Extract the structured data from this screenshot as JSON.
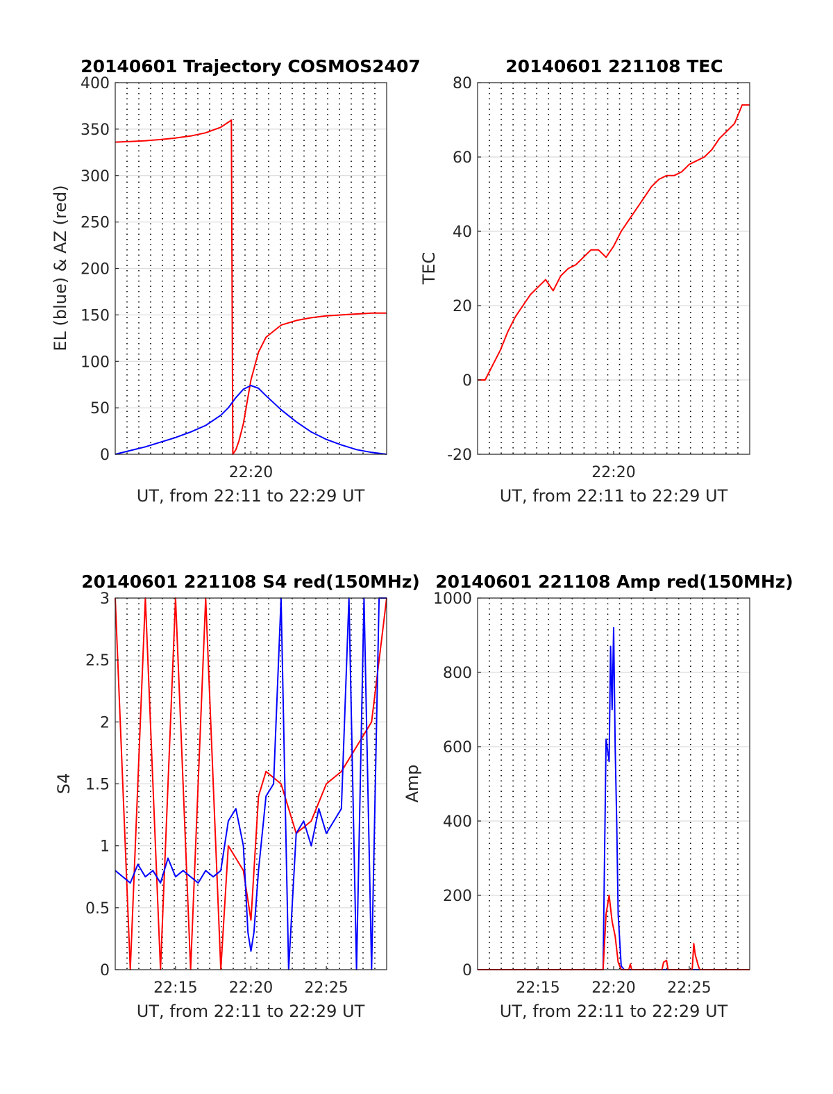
{
  "colors": {
    "red": "#ff0000",
    "blue": "#0000ff",
    "grid": "#dcdcdc",
    "vgrid": "#000000"
  },
  "chart_data": [
    {
      "id": "traj",
      "type": "line",
      "title": "20140601 Trajectory COSMOS2407",
      "xlabel": "UT, from 22:11 to 22:29 UT",
      "ylabel": "EL (blue) & AZ (red)",
      "xlim": [
        0,
        18
      ],
      "ylim": [
        0,
        400
      ],
      "yticks": [
        0,
        50,
        100,
        150,
        200,
        250,
        300,
        350,
        400
      ],
      "xticks": [
        9
      ],
      "xticklabels": [
        "22:20"
      ],
      "grid": true,
      "series": [
        {
          "color": "red",
          "x": [
            0,
            1,
            2,
            3,
            4,
            5,
            6,
            7,
            7.6,
            7.7,
            7.8,
            8.0,
            8.2,
            8.5,
            9.0,
            9.5,
            10.0,
            11.0,
            12.0,
            13.0,
            14.0,
            15.0,
            16.0,
            17.0,
            18.0
          ],
          "y": [
            336,
            336.6,
            337.5,
            338.8,
            340.4,
            342.6,
            346,
            352,
            358.5,
            359.8,
            0,
            5,
            14,
            33,
            80,
            110,
            126,
            139,
            144,
            147,
            149,
            150,
            151,
            152,
            152
          ]
        },
        {
          "color": "blue",
          "x": [
            0,
            1,
            2,
            3,
            4,
            5,
            6,
            7,
            7.5,
            8,
            8.5,
            9,
            9.5,
            10,
            11,
            12,
            13,
            14,
            15,
            16,
            17,
            18
          ],
          "y": [
            0,
            4,
            8,
            13,
            18,
            24,
            31,
            42,
            50,
            61,
            70,
            74,
            71,
            63,
            48,
            35,
            24,
            16,
            10,
            5,
            2,
            0
          ]
        }
      ]
    },
    {
      "id": "tec",
      "type": "line",
      "title": "20140601 221108 TEC",
      "xlabel": "UT, from 22:11 to 22:29 UT",
      "ylabel": "TEC",
      "xlim": [
        0,
        18
      ],
      "ylim": [
        -20,
        80
      ],
      "yticks": [
        -20,
        0,
        20,
        40,
        60,
        80
      ],
      "xticks": [
        9
      ],
      "xticklabels": [
        "22:20"
      ],
      "grid": true,
      "series": [
        {
          "color": "red",
          "x": [
            0,
            0.5,
            1,
            1.5,
            2,
            2.5,
            3,
            3.5,
            4,
            4.5,
            5,
            5.5,
            6,
            6.5,
            7,
            7.5,
            8,
            8.5,
            9,
            9.5,
            10,
            10.5,
            11,
            11.5,
            12,
            12.5,
            13,
            13.5,
            14,
            14.5,
            15,
            15.5,
            16,
            16.5,
            17,
            17.5,
            18
          ],
          "y": [
            0,
            0,
            4,
            8,
            13,
            17,
            20,
            23,
            25,
            27,
            24,
            28,
            30,
            31,
            33,
            35,
            35,
            33,
            36,
            40,
            43,
            46,
            49,
            52,
            54,
            55,
            55,
            56,
            58,
            59,
            60,
            62,
            65,
            67,
            69,
            74,
            74
          ]
        }
      ]
    },
    {
      "id": "s4",
      "type": "line",
      "title": "20140601 221108 S4 red(150MHz)",
      "xlabel": "UT, from 22:11 to 22:29 UT",
      "ylabel": "S4",
      "xlim": [
        0,
        18
      ],
      "ylim": [
        0,
        3
      ],
      "yticks": [
        0,
        0.5,
        1,
        1.5,
        2,
        2.5,
        3
      ],
      "yticklabels": [
        "0",
        "0.5",
        "1",
        "1.5",
        "2",
        "2.5",
        "3"
      ],
      "xticks": [
        4,
        9,
        14
      ],
      "xticklabels": [
        "22:15",
        "22:20",
        "22:25"
      ],
      "grid": true,
      "series": [
        {
          "color": "red",
          "x": [
            0,
            1,
            2,
            3,
            4,
            5,
            6,
            7,
            7.5,
            8,
            8.5,
            9,
            9.5,
            10,
            11,
            12,
            13,
            14,
            15,
            16,
            17,
            18
          ],
          "y": [
            3,
            0,
            3,
            0,
            3,
            0,
            3,
            0,
            1.0,
            0.9,
            0.8,
            0.4,
            1.4,
            1.6,
            1.5,
            1.1,
            1.2,
            1.5,
            1.6,
            1.8,
            2.0,
            3
          ]
        },
        {
          "color": "blue",
          "x": [
            0,
            0.5,
            1,
            1.5,
            2,
            2.5,
            3,
            3.5,
            4,
            4.5,
            5,
            5.5,
            6,
            6.5,
            7,
            7.5,
            8,
            8.5,
            8.8,
            9,
            9.2,
            9.5,
            10,
            10.5,
            11,
            11.5,
            12,
            12.5,
            13,
            13.5,
            14,
            14.5,
            15,
            15.5,
            16,
            16.5,
            17,
            17.5,
            18
          ],
          "y": [
            0.8,
            0.75,
            0.7,
            0.85,
            0.75,
            0.8,
            0.7,
            0.9,
            0.75,
            0.8,
            0.75,
            0.7,
            0.8,
            0.75,
            0.8,
            1.2,
            1.3,
            1.0,
            0.3,
            0.15,
            0.3,
            0.8,
            1.4,
            1.5,
            3,
            0,
            1.1,
            1.2,
            1.0,
            1.3,
            1.1,
            1.2,
            1.3,
            3,
            0,
            3,
            0,
            3,
            3
          ]
        }
      ]
    },
    {
      "id": "amp",
      "type": "line",
      "title": "20140601 221108 Amp red(150MHz)",
      "xlabel": "UT, from 22:11 to 22:29 UT",
      "ylabel": "Amp",
      "xlim": [
        0,
        18
      ],
      "ylim": [
        0,
        1000
      ],
      "yticks": [
        0,
        200,
        400,
        600,
        800,
        1000
      ],
      "xticks": [
        4,
        9,
        14
      ],
      "xticklabels": [
        "22:15",
        "22:20",
        "22:25"
      ],
      "grid": true,
      "series": [
        {
          "color": "blue",
          "x": [
            0,
            7,
            8.3,
            8.5,
            8.7,
            8.8,
            8.9,
            9.0,
            9.1,
            9.2,
            9.3,
            9.5,
            9.7,
            10,
            18
          ],
          "y": [
            0,
            0,
            0,
            620,
            560,
            870,
            700,
            920,
            600,
            400,
            150,
            10,
            0,
            0,
            0
          ]
        },
        {
          "color": "red",
          "x": [
            0,
            8.3,
            8.5,
            8.7,
            8.9,
            9.1,
            9.3,
            9.5,
            10.0,
            10.1,
            10.2,
            12.2,
            12.3,
            12.5,
            12.6,
            14.2,
            14.3,
            14.4,
            14.6,
            14.7,
            18
          ],
          "y": [
            0,
            0,
            150,
            200,
            130,
            90,
            20,
            0,
            0,
            15,
            0,
            0,
            20,
            25,
            0,
            0,
            70,
            40,
            10,
            0,
            0
          ]
        }
      ]
    }
  ]
}
